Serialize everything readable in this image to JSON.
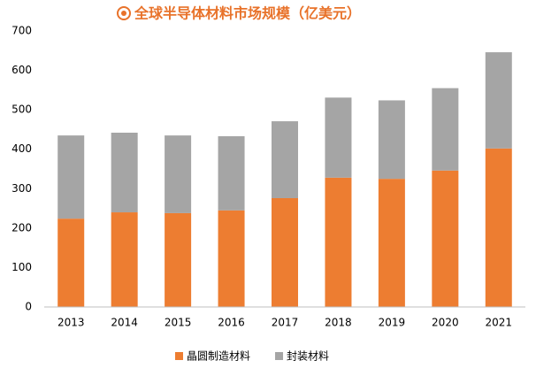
{
  "chart_data": {
    "type": "stacked-bar",
    "title": "全球半导体材料市场规模（亿美元）",
    "categories": [
      "2013",
      "2014",
      "2015",
      "2016",
      "2017",
      "2018",
      "2019",
      "2020",
      "2021"
    ],
    "series": [
      {
        "name": "晶圆制造材料",
        "color": "#ed7d31",
        "values": [
          224,
          240,
          238,
          245,
          276,
          328,
          325,
          346,
          402
        ]
      },
      {
        "name": "封装材料",
        "color": "#a5a5a5",
        "values": [
          211,
          202,
          197,
          188,
          195,
          203,
          199,
          209,
          244
        ]
      }
    ],
    "ylim": [
      0,
      700
    ],
    "yticks": [
      0,
      100,
      200,
      300,
      400,
      500,
      600,
      700
    ],
    "grid": false,
    "legend": "bottom"
  }
}
